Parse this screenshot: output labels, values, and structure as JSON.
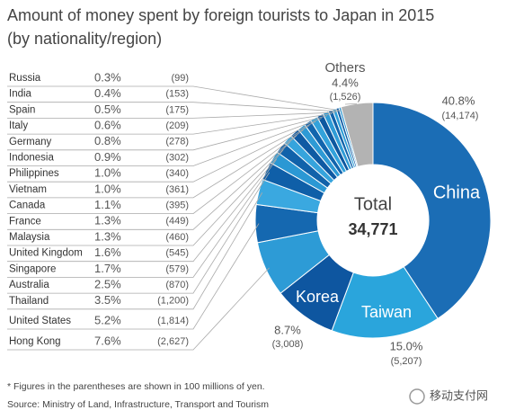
{
  "chart_data": {
    "type": "pie",
    "title": "Amount of money spent by foreign tourists to Japan in 2015",
    "subtitle": "(by nationality/region)",
    "categories": [
      "China",
      "Taiwan",
      "Korea",
      "Hong Kong",
      "United States",
      "Thailand",
      "Australia",
      "Singapore",
      "United Kingdom",
      "Malaysia",
      "France",
      "Canada",
      "Vietnam",
      "Philippines",
      "Indonesia",
      "Germany",
      "Italy",
      "Spain",
      "India",
      "Russia",
      "Others"
    ],
    "values": [
      40.8,
      15.0,
      8.7,
      7.6,
      5.2,
      3.5,
      2.5,
      1.7,
      1.6,
      1.3,
      1.3,
      1.1,
      1.0,
      1.0,
      0.9,
      0.8,
      0.6,
      0.5,
      0.4,
      0.3,
      4.4
    ],
    "value_labels": [
      "40.8%",
      "15.0%",
      "8.7%",
      "7.6%",
      "5.2%",
      "3.5%",
      "2.5%",
      "1.7%",
      "1.6%",
      "1.3%",
      "1.3%",
      "1.1%",
      "1.0%",
      "1.0%",
      "0.9%",
      "0.8%",
      "0.6%",
      "0.5%",
      "0.4%",
      "0.3%",
      "4.4%"
    ],
    "amount_labels": [
      "(14,174)",
      "(5,207)",
      "(3,008)",
      "(2,627)",
      "(1,814)",
      "(1,200)",
      "(870)",
      "(579)",
      "(545)",
      "(460)",
      "(449)",
      "(395)",
      "(361)",
      "(340)",
      "(302)",
      "(278)",
      "(209)",
      "(175)",
      "(153)",
      "(99)",
      "(1,526)"
    ],
    "colors": [
      "#1b6db5",
      "#2aa5dc",
      "#0e56a0",
      "#2d9bd6",
      "#1568b0",
      "#3aa8e0",
      "#0f5fa8",
      "#2b98d4",
      "#1162aa",
      "#36a4dd",
      "#0f5aa3",
      "#2e9ad5",
      "#1265ad",
      "#33a2db",
      "#0d58a0",
      "#2f9cd6",
      "#1263ab",
      "#30a0d8",
      "#0f5ca5",
      "#2b96d2",
      "#b3b3b3"
    ],
    "center_label": "Total",
    "center_value": "34,771",
    "footnote": "* Figures in the parentheses are shown in 100 millions of yen.",
    "source": "Source: Ministry of Land, Infrastructure, Transport and Tourism",
    "watermark": "移动支付网"
  }
}
